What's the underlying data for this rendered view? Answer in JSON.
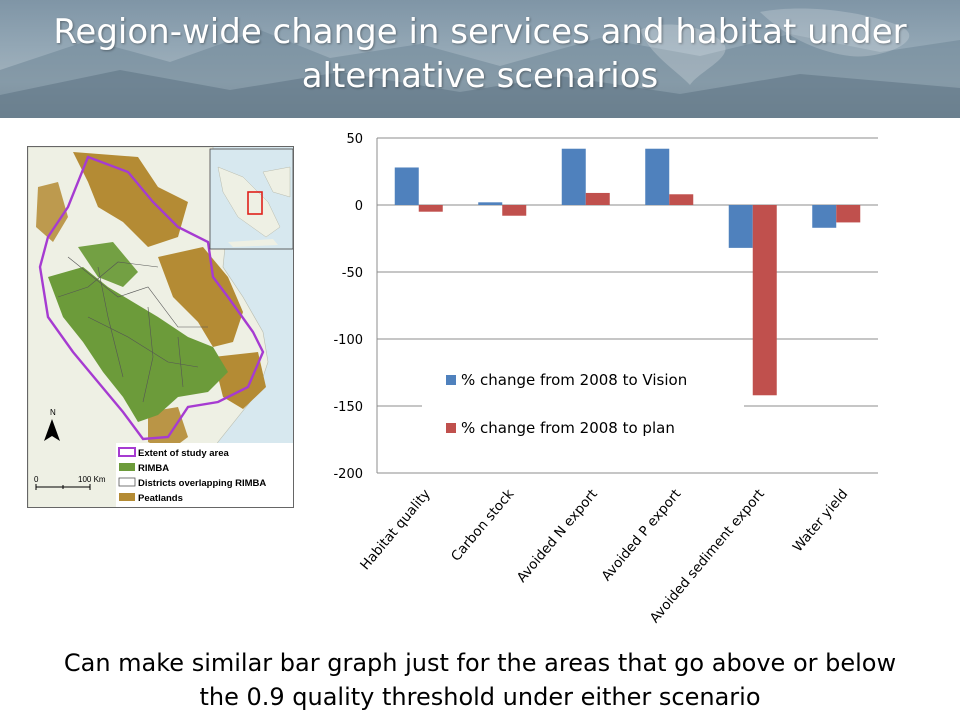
{
  "header": {
    "title_line1": "Region-wide change in services and habitat under",
    "title_line2": "alternative scenarios"
  },
  "map": {
    "legend": [
      "Extent of study area",
      "RIMBA",
      "Districts overlapping RIMBA",
      "Peatlands"
    ],
    "scale_zero": "0",
    "scale_label": "100 Km",
    "north_label": "N",
    "colors": {
      "study_area": "#a63bd1",
      "rimba": "#6c9b3a",
      "peatlands": "#b48b34",
      "land": "#eef0e4",
      "sea": "#d7e8ef",
      "inset_marker": "#e0201a"
    }
  },
  "chart_data": {
    "type": "bar",
    "categories": [
      "Habitat quality",
      "Carbon stock",
      "Avoided N export",
      "Avoided P export",
      "Avoided sediment export",
      "Water yield"
    ],
    "series": [
      {
        "name": "% change from 2008 to Vision",
        "color": "#4f81bd",
        "values": [
          28,
          2,
          42,
          42,
          -32,
          -17
        ]
      },
      {
        "name": "% change from 2008 to plan",
        "color": "#c0504d",
        "values": [
          -5,
          -8,
          9,
          8,
          -142,
          -13
        ]
      }
    ],
    "ylim": [
      -200,
      50
    ],
    "yticks": [
      50,
      0,
      -50,
      -100,
      -150,
      -200
    ],
    "xlabel": "",
    "ylabel": "",
    "grid": true,
    "legend_position": "bottom-center"
  },
  "caption": {
    "line1": "Can make  similar bar graph just for the areas that go above or below",
    "line2": "the 0.9 quality threshold under either scenario"
  }
}
